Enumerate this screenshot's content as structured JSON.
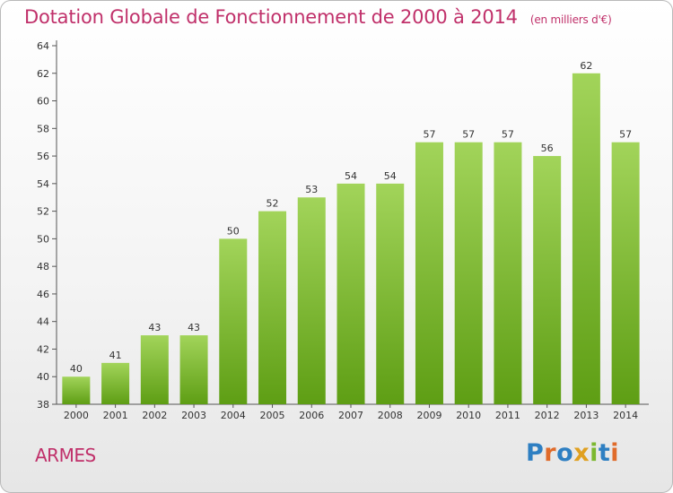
{
  "header": {
    "title": "Dotation Globale de Fonctionnement de 2000 à 2014",
    "unit": "(en milliers d'€)"
  },
  "commune": "ARMES",
  "logo": {
    "text": "Proxiti",
    "colors": [
      "#2e7fc2",
      "#e06b2a",
      "#2e7fc2",
      "#e0a020",
      "#7cb82f",
      "#2e7fc2",
      "#e06b2a"
    ]
  },
  "chart_data": {
    "type": "bar",
    "categories": [
      "2000",
      "2001",
      "2002",
      "2003",
      "2004",
      "2005",
      "2006",
      "2007",
      "2008",
      "2009",
      "2010",
      "2011",
      "2012",
      "2013",
      "2014"
    ],
    "values": [
      40,
      41,
      43,
      43,
      50,
      52,
      53,
      54,
      54,
      57,
      57,
      57,
      56,
      62,
      57
    ],
    "ylim": [
      38,
      64
    ],
    "yticks": [
      38,
      40,
      42,
      44,
      46,
      48,
      50,
      52,
      54,
      56,
      58,
      60,
      62,
      64
    ],
    "grid": false,
    "bar_color_top": "#a2d45a",
    "bar_color_bottom": "#5e9e14",
    "axis_color": "#555555"
  }
}
